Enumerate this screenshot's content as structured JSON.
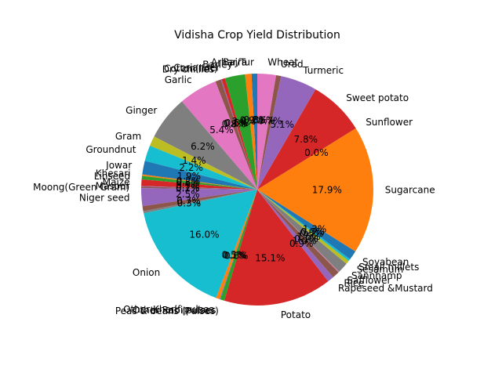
{
  "chart_data": {
    "type": "pie",
    "title": "Vidisha Crop Yield Distribution",
    "start_angle_deg": 90,
    "direction": "counterclockwise",
    "label_format": "%1.1f%%",
    "slices": [
      {
        "label": "Arhar/Tur",
        "value": 0.8,
        "color": "#1f77b4"
      },
      {
        "label": "Bajra",
        "value": 0.9,
        "color": "#ff7f0e"
      },
      {
        "label": "Barley",
        "value": 2.8,
        "color": "#2ca02c"
      },
      {
        "label": "Coriander",
        "value": 0.5,
        "color": "#d62728"
      },
      {
        "label": "Cotton(lint)",
        "value": 0.1,
        "color": "#9467bd"
      },
      {
        "label": "Dry chillies",
        "value": 0.8,
        "color": "#8c564b"
      },
      {
        "label": "Garlic",
        "value": 5.4,
        "color": "#e377c2"
      },
      {
        "label": "Ginger",
        "value": 6.2,
        "color": "#7f7f7f"
      },
      {
        "label": "Gram",
        "value": 1.4,
        "color": "#bcbd22"
      },
      {
        "label": "Groundnut",
        "value": 2.2,
        "color": "#17becf"
      },
      {
        "label": "Jowar",
        "value": 1.9,
        "color": "#1f77b4"
      },
      {
        "label": "Khesari",
        "value": 0.2,
        "color": "#ff7f0e"
      },
      {
        "label": "Linseed",
        "value": 0.5,
        "color": "#2ca02c"
      },
      {
        "label": "Maize",
        "value": 0.9,
        "color": "#d62728"
      },
      {
        "label": "Masoor",
        "value": 0.1,
        "color": "#9467bd"
      },
      {
        "label": "Moong(Green Gram)",
        "value": 0.2,
        "color": "#8c564b"
      },
      {
        "label": "Niger seed",
        "value": 2.5,
        "color": "#9467bd"
      },
      {
        "label": "",
        "value": 0.7,
        "color": "#8c564b"
      },
      {
        "label": "",
        "value": 0.3,
        "color": "#7f7f7f"
      },
      {
        "label": "Onion",
        "value": 16.0,
        "color": "#17becf"
      },
      {
        "label": "Other Kharif pulses",
        "value": 0.5,
        "color": "#ff7f0e"
      },
      {
        "label": "Other Rabi pulses",
        "value": 0.1,
        "color": "#9467bd"
      },
      {
        "label": "Peas & beans (Pulses)",
        "value": 0.6,
        "color": "#2ca02c"
      },
      {
        "label": "Potato",
        "value": 15.1,
        "color": "#d62728"
      },
      {
        "label": "Rapeseed &Mustard",
        "value": 0.9,
        "color": "#9467bd"
      },
      {
        "label": "Rice",
        "value": 1.0,
        "color": "#8c564b"
      },
      {
        "label": "Safflower",
        "value": 0.1,
        "color": "#e377c2"
      },
      {
        "label": "Sannhamp",
        "value": 1.5,
        "color": "#7f7f7f"
      },
      {
        "label": "Sesamum",
        "value": 0.5,
        "color": "#bcbd22"
      },
      {
        "label": "Small millets",
        "value": 0.3,
        "color": "#17becf"
      },
      {
        "label": "Soyabean",
        "value": 1.3,
        "color": "#1f77b4"
      },
      {
        "label": "Sugarcane",
        "value": 17.9,
        "color": "#ff7f0e"
      },
      {
        "label": "Sunflower",
        "value": 0.0,
        "color": "#2ca02c"
      },
      {
        "label": "Sweet potato",
        "value": 7.8,
        "color": "#d62728"
      },
      {
        "label": "Turmeric",
        "value": 5.1,
        "color": "#9467bd"
      },
      {
        "label": "Urad",
        "value": 0.7,
        "color": "#8c564b"
      },
      {
        "label": "Wheat",
        "value": 2.6,
        "color": "#e377c2"
      }
    ]
  }
}
